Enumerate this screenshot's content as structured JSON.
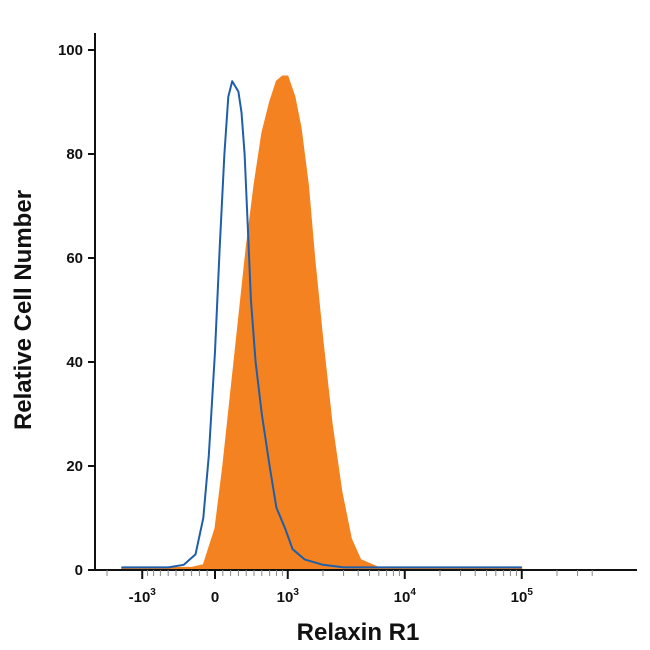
{
  "chart_data": {
    "type": "area",
    "xlabel": "Relaxin R1",
    "ylabel": "Relative Cell Number",
    "x_scale": "biexponential",
    "ylim": [
      0,
      100
    ],
    "y_ticks": [
      0,
      20,
      40,
      60,
      80,
      100
    ],
    "x_ticks": [
      {
        "base": "-10",
        "exp": "3",
        "value": -1000
      },
      {
        "base": "0",
        "exp": "",
        "value": 0
      },
      {
        "base": "10",
        "exp": "3",
        "value": 1000
      },
      {
        "base": "10",
        "exp": "4",
        "value": 10000
      },
      {
        "base": "10",
        "exp": "5",
        "value": 100000
      }
    ],
    "grid": false,
    "series": [
      {
        "style": "outline",
        "color": "#1f5ea8",
        "x": [
          -1500,
          -600,
          -400,
          -250,
          -150,
          -80,
          0,
          60,
          120,
          170,
          220,
          260,
          300,
          340,
          380,
          420,
          460,
          520,
          600,
          700,
          800,
          950,
          1100,
          1400,
          2000,
          3000,
          100000
        ],
        "y": [
          0.5,
          0.5,
          1,
          3,
          10,
          22,
          42,
          62,
          80,
          91,
          94,
          93,
          92,
          88,
          80,
          66,
          52,
          40,
          30,
          20,
          12,
          8,
          4,
          2,
          1,
          0.5,
          0.5
        ]
      },
      {
        "style": "filled",
        "color": "#f58220",
        "x": [
          -1500,
          -300,
          -150,
          0,
          100,
          200,
          300,
          400,
          500,
          600,
          700,
          800,
          900,
          1000,
          1150,
          1300,
          1500,
          1700,
          2000,
          2400,
          2900,
          3500,
          4200,
          6000,
          100000
        ],
        "y": [
          0.5,
          0.5,
          1,
          8,
          20,
          34,
          48,
          62,
          74,
          84,
          90,
          94,
          95,
          95,
          91,
          85,
          74,
          60,
          44,
          28,
          15,
          6,
          2,
          0.5,
          0.5
        ]
      }
    ]
  }
}
